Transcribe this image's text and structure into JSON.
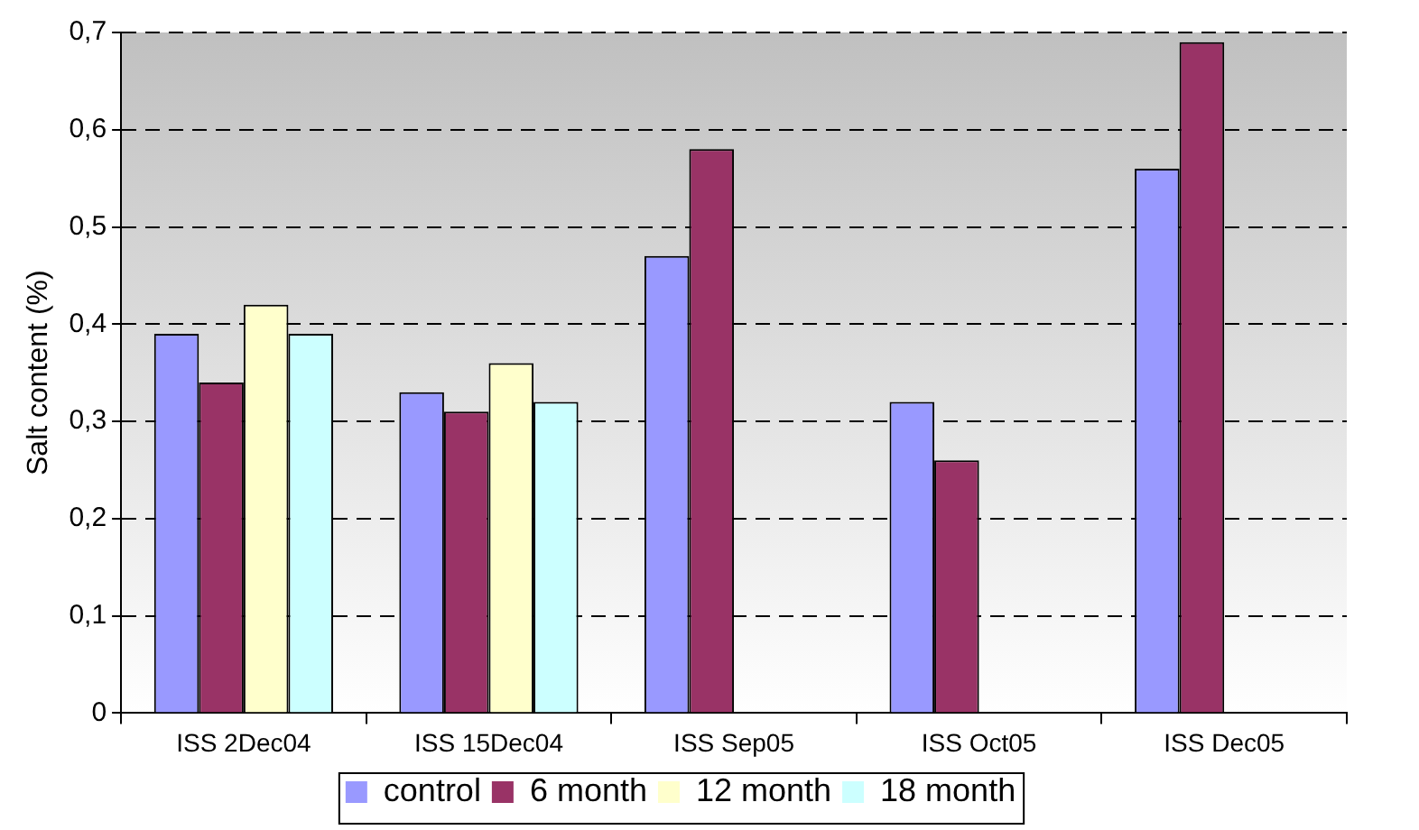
{
  "chart_data": {
    "type": "bar",
    "ylabel": "Salt content (%)",
    "categories": [
      "ISS 2Dec04",
      "ISS 15Dec04",
      "ISS Sep05",
      "ISS Oct05",
      "ISS Dec05"
    ],
    "series": [
      {
        "name": "control",
        "color": "#9999ff",
        "values": [
          0.39,
          0.33,
          0.47,
          0.32,
          0.56
        ]
      },
      {
        "name": "6 month",
        "color": "#993366",
        "values": [
          0.34,
          0.31,
          0.58,
          0.26,
          0.69
        ]
      },
      {
        "name": "12 month",
        "color": "#ffffcc",
        "values": [
          0.42,
          0.36,
          null,
          null,
          null
        ]
      },
      {
        "name": "18 month",
        "color": "#ccffff",
        "values": [
          0.39,
          0.32,
          null,
          null,
          null
        ]
      }
    ],
    "ylim": [
      0,
      0.7
    ],
    "yticks": [
      {
        "value": 0,
        "label": "0"
      },
      {
        "value": 0.1,
        "label": "0,1"
      },
      {
        "value": 0.2,
        "label": "0,2"
      },
      {
        "value": 0.3,
        "label": "0,3"
      },
      {
        "value": 0.4,
        "label": "0,4"
      },
      {
        "value": 0.5,
        "label": "0,5"
      },
      {
        "value": 0.6,
        "label": "0,6"
      },
      {
        "value": 0.7,
        "label": "0,7"
      }
    ],
    "grid": "y",
    "legend": "bottom"
  }
}
